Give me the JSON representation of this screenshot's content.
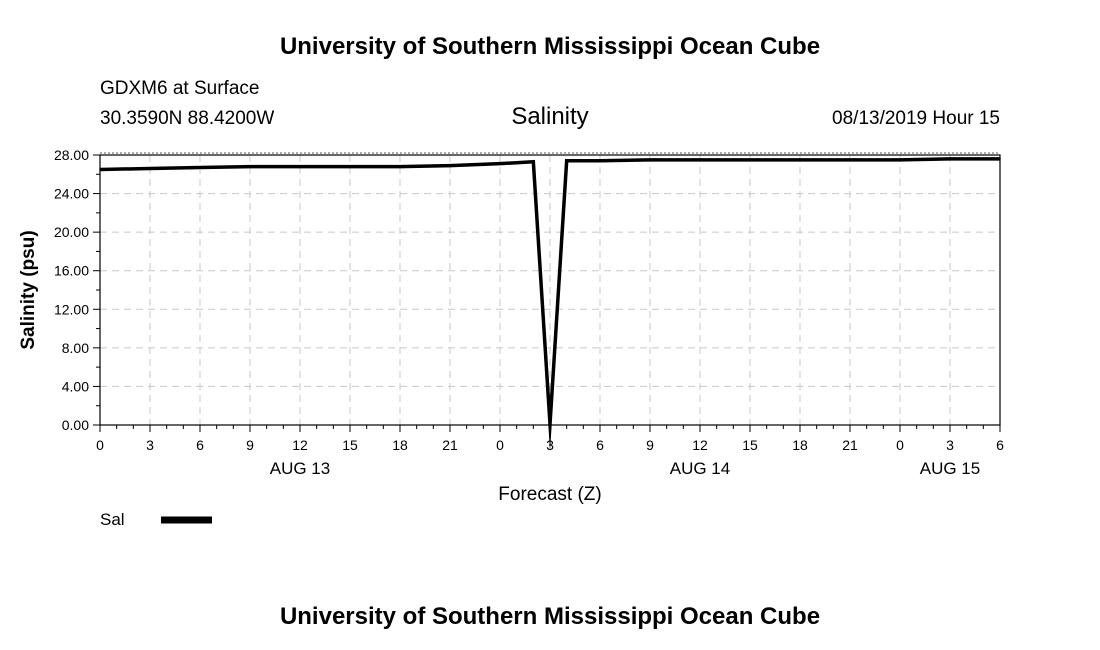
{
  "header": {
    "title": "University of Southern Mississippi Ocean Cube",
    "station": "GDXM6 at Surface",
    "coords": "30.3590N 88.4200W",
    "datetime": "08/13/2019 Hour 15"
  },
  "footer": {
    "title": "University of Southern Mississippi Ocean Cube"
  },
  "chart_data": {
    "type": "line",
    "title": "Salinity",
    "xlabel": "Forecast (Z)",
    "ylabel": "Salinity (psu)",
    "ylim": [
      0,
      28
    ],
    "xlim": [
      0,
      54
    ],
    "grid": true,
    "y_ticks": [
      "0.00",
      "4.00",
      "8.00",
      "12.00",
      "16.00",
      "20.00",
      "24.00",
      "28.00"
    ],
    "x_tick_labels": [
      "0",
      "3",
      "6",
      "9",
      "12",
      "15",
      "18",
      "21",
      "0",
      "3",
      "6",
      "9",
      "12",
      "15",
      "18",
      "21",
      "0",
      "3",
      "6"
    ],
    "x_day_labels": [
      {
        "hour": 12,
        "label": "AUG 13"
      },
      {
        "hour": 36,
        "label": "AUG 14"
      },
      {
        "hour": 51,
        "label": "AUG 15"
      }
    ],
    "legend_position": "bottom-left",
    "series": [
      {
        "name": "Sal",
        "color": "#000000",
        "points": [
          [
            0,
            26.5
          ],
          [
            3,
            26.6
          ],
          [
            6,
            26.7
          ],
          [
            9,
            26.8
          ],
          [
            12,
            26.8
          ],
          [
            15,
            26.8
          ],
          [
            18,
            26.8
          ],
          [
            21,
            26.9
          ],
          [
            24,
            27.1
          ],
          [
            26,
            27.3
          ],
          [
            27,
            0.1
          ],
          [
            28,
            27.4
          ],
          [
            30,
            27.4
          ],
          [
            33,
            27.5
          ],
          [
            36,
            27.5
          ],
          [
            39,
            27.5
          ],
          [
            42,
            27.5
          ],
          [
            45,
            27.5
          ],
          [
            48,
            27.5
          ],
          [
            51,
            27.6
          ],
          [
            54,
            27.6
          ]
        ]
      }
    ]
  }
}
